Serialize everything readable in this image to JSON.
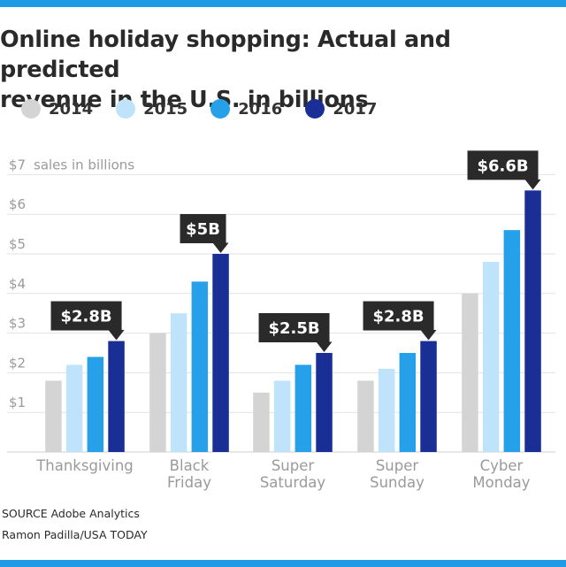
{
  "header": {
    "title_line1": "Online holiday shopping: Actual and predicted",
    "title_line2": "revenue in the U.S. in billions"
  },
  "colors": {
    "accent_bar": "#1e9be4",
    "series": [
      "#d4d4d4",
      "#bfe3fa",
      "#27a0ea",
      "#1a2f96"
    ],
    "callout_bg": "#2a2a2a",
    "gridline": "#e2e2e2",
    "axis_text": "#9a9a9a"
  },
  "chart_data": {
    "type": "bar",
    "title": "Online holiday shopping: Actual and predicted revenue in the U.S. in billions",
    "ylabel": "sales in billions",
    "ylim": [
      0,
      7
    ],
    "y_ticks": [
      "$1",
      "$2",
      "$3",
      "$4",
      "$5",
      "$6",
      "$7"
    ],
    "grid": true,
    "legend_position": "top-left",
    "categories": [
      [
        "Thanksgiving"
      ],
      [
        "Black",
        "Friday"
      ],
      [
        "Super",
        "Saturday"
      ],
      [
        "Super",
        "Sunday"
      ],
      [
        "Cyber",
        "Monday"
      ]
    ],
    "series": [
      {
        "name": "2014",
        "values": [
          1.8,
          3.0,
          1.5,
          1.8,
          4.0
        ]
      },
      {
        "name": "2015",
        "values": [
          2.2,
          3.5,
          1.8,
          2.1,
          4.8
        ]
      },
      {
        "name": "2016",
        "values": [
          2.4,
          4.3,
          2.2,
          2.5,
          5.6
        ]
      },
      {
        "name": "2017",
        "values": [
          2.8,
          5.0,
          2.5,
          2.8,
          6.6
        ]
      }
    ],
    "annotations": [
      "$2.8B",
      "$5B",
      "$2.5B",
      "$2.8B",
      "$6.6B"
    ]
  },
  "footer": {
    "source": "SOURCE Adobe Analytics",
    "credit": "Ramon Padilla/USA TODAY"
  }
}
